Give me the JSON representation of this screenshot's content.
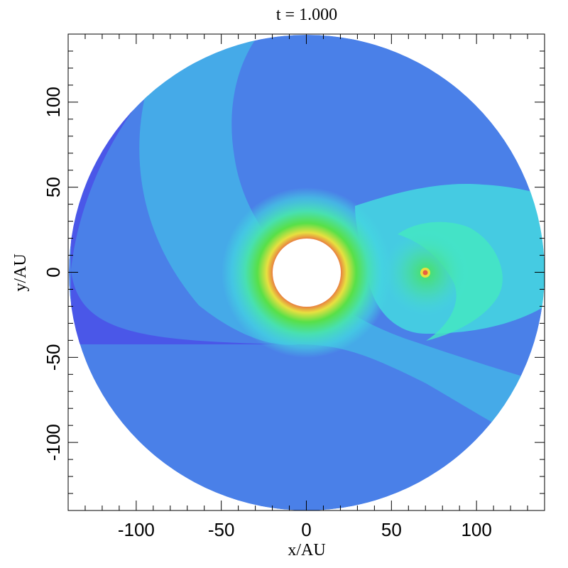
{
  "chart_data": {
    "type": "heatmap",
    "title": "t = 1.000",
    "xlabel": "x/AU",
    "ylabel": "y/AU",
    "xlim": [
      -140,
      140
    ],
    "ylim": [
      -140,
      140
    ],
    "xticks": [
      -100,
      -50,
      0,
      50,
      100
    ],
    "yticks": [
      -100,
      -50,
      0,
      50,
      100
    ],
    "minor_tick_step": 10,
    "disk_outer_radius": 140,
    "disk_inner_hole_radius": 20,
    "planet_position": [
      70,
      0
    ],
    "colormap": [
      "#4a48e8",
      "#4a80ea",
      "#44d0e8",
      "#44e8e0",
      "#48e060",
      "#e8e040",
      "#e86040",
      "#e04040"
    ],
    "background_color": "#ffffff",
    "grid": false
  }
}
